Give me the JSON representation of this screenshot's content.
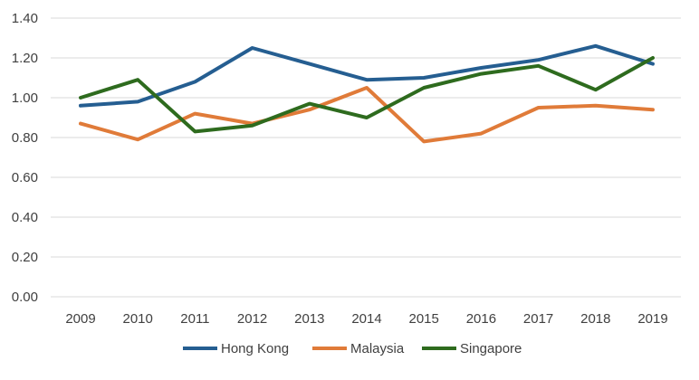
{
  "chart_data": {
    "type": "line",
    "title": "",
    "xlabel": "",
    "ylabel": "",
    "ylim": [
      0,
      1.4
    ],
    "yticks": [
      0.0,
      0.2,
      0.4,
      0.6,
      0.8,
      1.0,
      1.2,
      1.4
    ],
    "ytick_labels": [
      "0.00",
      "0.20",
      "0.40",
      "0.60",
      "0.80",
      "1.00",
      "1.20",
      "1.40"
    ],
    "categories": [
      "2009",
      "2010",
      "2011",
      "2012",
      "2013",
      "2014",
      "2015",
      "2016",
      "2017",
      "2018",
      "2019"
    ],
    "grid": "horizontal",
    "legend_position": "bottom",
    "series": [
      {
        "name": "Hong Kong",
        "color": "#255E91",
        "values": [
          0.96,
          0.98,
          1.08,
          1.25,
          1.17,
          1.09,
          1.1,
          1.15,
          1.19,
          1.26,
          1.17
        ]
      },
      {
        "name": "Malaysia",
        "color": "#E07B39",
        "values": [
          0.87,
          0.79,
          0.92,
          0.87,
          0.94,
          1.05,
          0.78,
          0.82,
          0.95,
          0.96,
          0.94
        ]
      },
      {
        "name": "Singapore",
        "color": "#2E6B1E",
        "values": [
          1.0,
          1.09,
          0.83,
          0.86,
          0.97,
          0.9,
          1.05,
          1.12,
          1.16,
          1.04,
          1.2
        ]
      }
    ]
  }
}
